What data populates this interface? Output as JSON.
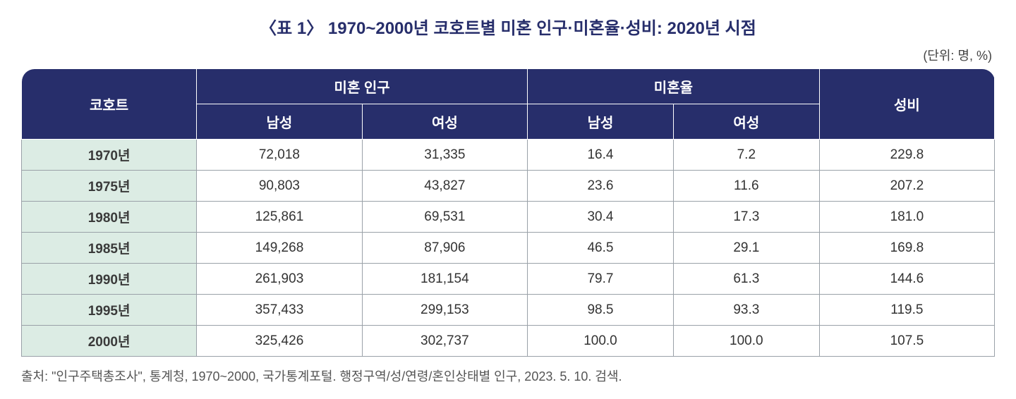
{
  "title": "〈표 1〉 1970~2000년 코호트별 미혼 인구·미혼율·성비: 2020년 시점",
  "unit": "(단위: 명, %)",
  "table": {
    "type": "table",
    "header_bg_color": "#272e6b",
    "header_text_color": "#ffffff",
    "cohort_cell_bg_color": "#dcece4",
    "body_bg_color": "#ffffff",
    "border_color": "#9aa1a8",
    "header_fontsize": 20,
    "body_fontsize": 19,
    "columns_top": [
      {
        "label": "코호트",
        "rowspan": 2
      },
      {
        "label": "미혼 인구",
        "colspan": 2
      },
      {
        "label": "미혼율",
        "colspan": 2
      },
      {
        "label": "성비",
        "rowspan": 2
      }
    ],
    "columns_sub": [
      {
        "label": "남성"
      },
      {
        "label": "여성"
      },
      {
        "label": "남성"
      },
      {
        "label": "여성"
      }
    ],
    "rows": [
      {
        "cohort": "1970년",
        "pop_male": "72,018",
        "pop_female": "31,335",
        "rate_male": "16.4",
        "rate_female": "7.2",
        "sex_ratio": "229.8"
      },
      {
        "cohort": "1975년",
        "pop_male": "90,803",
        "pop_female": "43,827",
        "rate_male": "23.6",
        "rate_female": "11.6",
        "sex_ratio": "207.2"
      },
      {
        "cohort": "1980년",
        "pop_male": "125,861",
        "pop_female": "69,531",
        "rate_male": "30.4",
        "rate_female": "17.3",
        "sex_ratio": "181.0"
      },
      {
        "cohort": "1985년",
        "pop_male": "149,268",
        "pop_female": "87,906",
        "rate_male": "46.5",
        "rate_female": "29.1",
        "sex_ratio": "169.8"
      },
      {
        "cohort": "1990년",
        "pop_male": "261,903",
        "pop_female": "181,154",
        "rate_male": "79.7",
        "rate_female": "61.3",
        "sex_ratio": "144.6"
      },
      {
        "cohort": "1995년",
        "pop_male": "357,433",
        "pop_female": "299,153",
        "rate_male": "98.5",
        "rate_female": "93.3",
        "sex_ratio": "119.5"
      },
      {
        "cohort": "2000년",
        "pop_male": "325,426",
        "pop_female": "302,737",
        "rate_male": "100.0",
        "rate_female": "100.0",
        "sex_ratio": "107.5"
      }
    ],
    "column_widths_pct": [
      18,
      17,
      17,
      15,
      15,
      18
    ]
  },
  "source": "출처: \"인구주택총조사\", 통계청, 1970~2000, 국가통계포털. 행정구역/성/연령/혼인상태별 인구, 2023. 5. 10. 검색."
}
